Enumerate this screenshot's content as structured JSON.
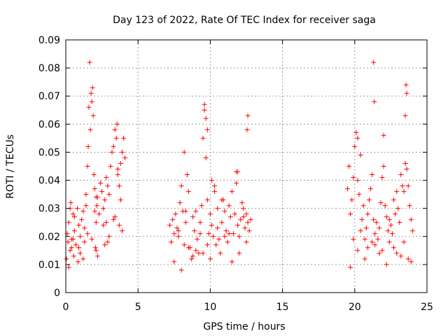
{
  "chart_data": {
    "type": "scatter",
    "title": "Day 123 of 2022, Rate Of TEC Index for receiver saga",
    "xlabel": "GPS time / hours",
    "ylabel": "ROTI / TECUs",
    "xlim": [
      0,
      25
    ],
    "ylim": [
      0,
      0.09
    ],
    "xticks": [
      "0",
      "5",
      "10",
      "15",
      "20",
      "25"
    ],
    "yticks": [
      "0",
      "0.01",
      "0.02",
      "0.03",
      "0.04",
      "0.05",
      "0.06",
      "0.07",
      "0.08",
      "0.09"
    ],
    "grid": true,
    "marker": "+",
    "color": "#ff0000",
    "series": [
      {
        "x": [
          0.05,
          0.1,
          0.15,
          0.2,
          0.3,
          0.35,
          0.4,
          0.5,
          0.55,
          0.6,
          0.7,
          0.8,
          0.85,
          0.9,
          1.0,
          1.1,
          1.2,
          1.3,
          1.4,
          1.5,
          1.55,
          1.6,
          1.65,
          1.7,
          1.75,
          1.8,
          1.85,
          1.9,
          1.95,
          2.0,
          2.05,
          2.1,
          2.15,
          2.2,
          2.3,
          2.4,
          2.5,
          2.6,
          2.7,
          2.8,
          2.9,
          3.0,
          3.1,
          3.2,
          3.3,
          3.4,
          3.5,
          3.55,
          3.6,
          3.7,
          3.8,
          3.9,
          4.0,
          4.1,
          0.2,
          0.6,
          1.0,
          1.4,
          1.8,
          2.2,
          2.6,
          3.0,
          3.4,
          3.8,
          0.3,
          0.9,
          1.5,
          2.1,
          2.7,
          3.3,
          3.9,
          0.4,
          1.2,
          2.0,
          2.8,
          3.6,
          0.5,
          1.3,
          2.1,
          2.9,
          3.7,
          7.2,
          7.3,
          7.4,
          7.5,
          7.6,
          7.7,
          7.8,
          7.9,
          8.0,
          8.1,
          8.2,
          8.3,
          8.4,
          8.5,
          8.6,
          8.7,
          8.8,
          8.9,
          9.0,
          9.1,
          9.2,
          9.3,
          9.4,
          9.5,
          9.6,
          9.7,
          9.8,
          9.9,
          10.0,
          10.1,
          10.2,
          10.3,
          10.4,
          10.5,
          10.6,
          10.7,
          10.8,
          10.9,
          11.0,
          11.1,
          11.2,
          11.3,
          11.4,
          11.5,
          11.6,
          11.7,
          11.8,
          11.9,
          12.0,
          12.1,
          12.2,
          12.3,
          12.4,
          12.5,
          12.6,
          12.7,
          12.8,
          7.5,
          8.0,
          8.5,
          9.0,
          9.5,
          10.0,
          10.5,
          11.0,
          11.5,
          12.0,
          12.5,
          7.8,
          8.3,
          8.8,
          9.3,
          9.8,
          10.3,
          10.8,
          11.3,
          11.8,
          12.3,
          8.2,
          9.6,
          9.7,
          9.8,
          10.1,
          11.9,
          12.6,
          12.55,
          19.5,
          19.6,
          19.7,
          19.8,
          19.9,
          20.0,
          20.1,
          20.2,
          20.3,
          20.4,
          20.5,
          20.6,
          20.7,
          20.8,
          20.9,
          21.0,
          21.1,
          21.2,
          21.3,
          21.4,
          21.5,
          21.6,
          21.7,
          21.8,
          21.9,
          22.0,
          22.1,
          22.2,
          22.3,
          22.4,
          22.5,
          22.6,
          22.7,
          22.8,
          22.9,
          23.0,
          23.1,
          23.2,
          23.3,
          23.4,
          23.5,
          23.6,
          23.7,
          23.8,
          23.9,
          24.0,
          19.7,
          20.2,
          20.7,
          21.2,
          21.7,
          22.2,
          22.7,
          23.2,
          23.7,
          19.9,
          20.4,
          20.9,
          21.4,
          21.9,
          22.4,
          22.9,
          23.4,
          23.9,
          21.3,
          21.35,
          23.55,
          23.6,
          23.5,
          20.2,
          22.0
        ],
        "y": [
          0.012,
          0.021,
          0.018,
          0.025,
          0.015,
          0.032,
          0.019,
          0.028,
          0.013,
          0.022,
          0.017,
          0.03,
          0.011,
          0.024,
          0.02,
          0.026,
          0.029,
          0.018,
          0.031,
          0.045,
          0.052,
          0.066,
          0.082,
          0.058,
          0.071,
          0.068,
          0.073,
          0.063,
          0.042,
          0.037,
          0.016,
          0.025,
          0.031,
          0.034,
          0.028,
          0.039,
          0.036,
          0.03,
          0.033,
          0.041,
          0.038,
          0.035,
          0.045,
          0.05,
          0.052,
          0.058,
          0.055,
          0.06,
          0.042,
          0.038,
          0.046,
          0.05,
          0.055,
          0.048,
          0.009,
          0.027,
          0.014,
          0.035,
          0.019,
          0.013,
          0.024,
          0.02,
          0.027,
          0.033,
          0.03,
          0.016,
          0.021,
          0.034,
          0.017,
          0.026,
          0.022,
          0.016,
          0.012,
          0.029,
          0.025,
          0.044,
          0.019,
          0.023,
          0.015,
          0.018,
          0.024,
          0.024,
          0.018,
          0.026,
          0.021,
          0.028,
          0.023,
          0.02,
          0.032,
          0.038,
          0.029,
          0.017,
          0.025,
          0.042,
          0.036,
          0.016,
          0.012,
          0.027,
          0.022,
          0.015,
          0.019,
          0.014,
          0.025,
          0.031,
          0.055,
          0.065,
          0.048,
          0.033,
          0.021,
          0.028,
          0.024,
          0.02,
          0.036,
          0.017,
          0.023,
          0.019,
          0.014,
          0.025,
          0.033,
          0.029,
          0.022,
          0.018,
          0.031,
          0.027,
          0.036,
          0.021,
          0.028,
          0.043,
          0.024,
          0.02,
          0.026,
          0.032,
          0.03,
          0.023,
          0.028,
          0.025,
          0.022,
          0.026,
          0.011,
          0.008,
          0.016,
          0.029,
          0.014,
          0.012,
          0.03,
          0.02,
          0.011,
          0.014,
          0.018,
          0.022,
          0.029,
          0.013,
          0.021,
          0.017,
          0.038,
          0.033,
          0.021,
          0.039,
          0.027,
          0.05,
          0.067,
          0.062,
          0.058,
          0.04,
          0.043,
          0.063,
          0.058,
          0.037,
          0.045,
          0.028,
          0.033,
          0.041,
          0.052,
          0.057,
          0.04,
          0.035,
          0.049,
          0.026,
          0.031,
          0.019,
          0.023,
          0.028,
          0.033,
          0.037,
          0.042,
          0.026,
          0.021,
          0.025,
          0.019,
          0.023,
          0.032,
          0.041,
          0.045,
          0.031,
          0.027,
          0.022,
          0.018,
          0.024,
          0.021,
          0.033,
          0.028,
          0.036,
          0.03,
          0.025,
          0.042,
          0.038,
          0.036,
          0.046,
          0.044,
          0.038,
          0.031,
          0.026,
          0.022,
          0.009,
          0.015,
          0.012,
          0.018,
          0.014,
          0.01,
          0.016,
          0.013,
          0.012,
          0.019,
          0.022,
          0.016,
          0.017,
          0.015,
          0.026,
          0.014,
          0.018,
          0.011,
          0.082,
          0.068,
          0.074,
          0.071,
          0.063,
          0.055,
          0.056
        ]
      }
    ]
  }
}
